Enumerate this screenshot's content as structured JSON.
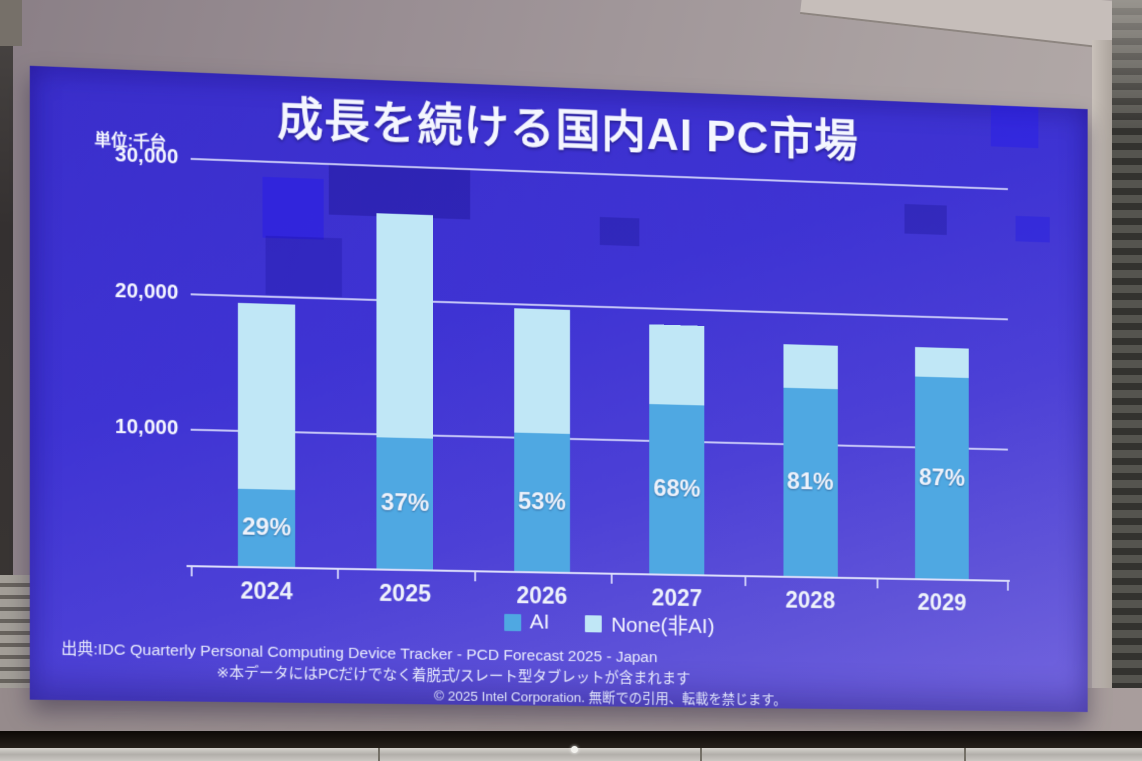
{
  "slide": {
    "title": "成長を続ける国内AI PC市場",
    "unit_label": "単位:千台",
    "source": "出典:IDC Quarterly Personal Computing Device Tracker - PCD Forecast 2025 - Japan",
    "note": "※本データにはPCだけでなく着脱式/スレート型タブレットが含まれます",
    "copyright": "© 2025 Intel Corporation. 無断での引用、転載を禁じます。"
  },
  "chart_data": {
    "type": "bar",
    "stacked": true,
    "title": "成長を続ける国内AI PC市場",
    "unit": "千台",
    "categories": [
      "2024",
      "2025",
      "2026",
      "2027",
      "2028",
      "2029"
    ],
    "series": [
      {
        "name": "AI",
        "color": "#4fa8e2",
        "values": [
          5700,
          9800,
          10400,
          12800,
          14300,
          15400
        ]
      },
      {
        "name": "None(非AI)",
        "color": "#c0e7f6",
        "values": [
          13800,
          16700,
          9300,
          6000,
          3300,
          2300
        ]
      }
    ],
    "totals": [
      19500,
      26500,
      19700,
      18800,
      17600,
      17700
    ],
    "ai_share_labels": [
      "29%",
      "37%",
      "53%",
      "68%",
      "81%",
      "87%"
    ],
    "ylim": [
      0,
      30000
    ],
    "yticks": [
      {
        "value": 10000,
        "label": "10,000"
      },
      {
        "value": 20000,
        "label": "20,000"
      },
      {
        "value": 30000,
        "label": "30,000"
      }
    ],
    "grid": true,
    "legend_position": "bottom"
  },
  "colors": {
    "slide_background": "#3f33d2",
    "ai_bar": "#4fa8e2",
    "none_bar": "#c0e7f6",
    "gridline": "#e2e5ff",
    "text": "#f4f6ff"
  }
}
